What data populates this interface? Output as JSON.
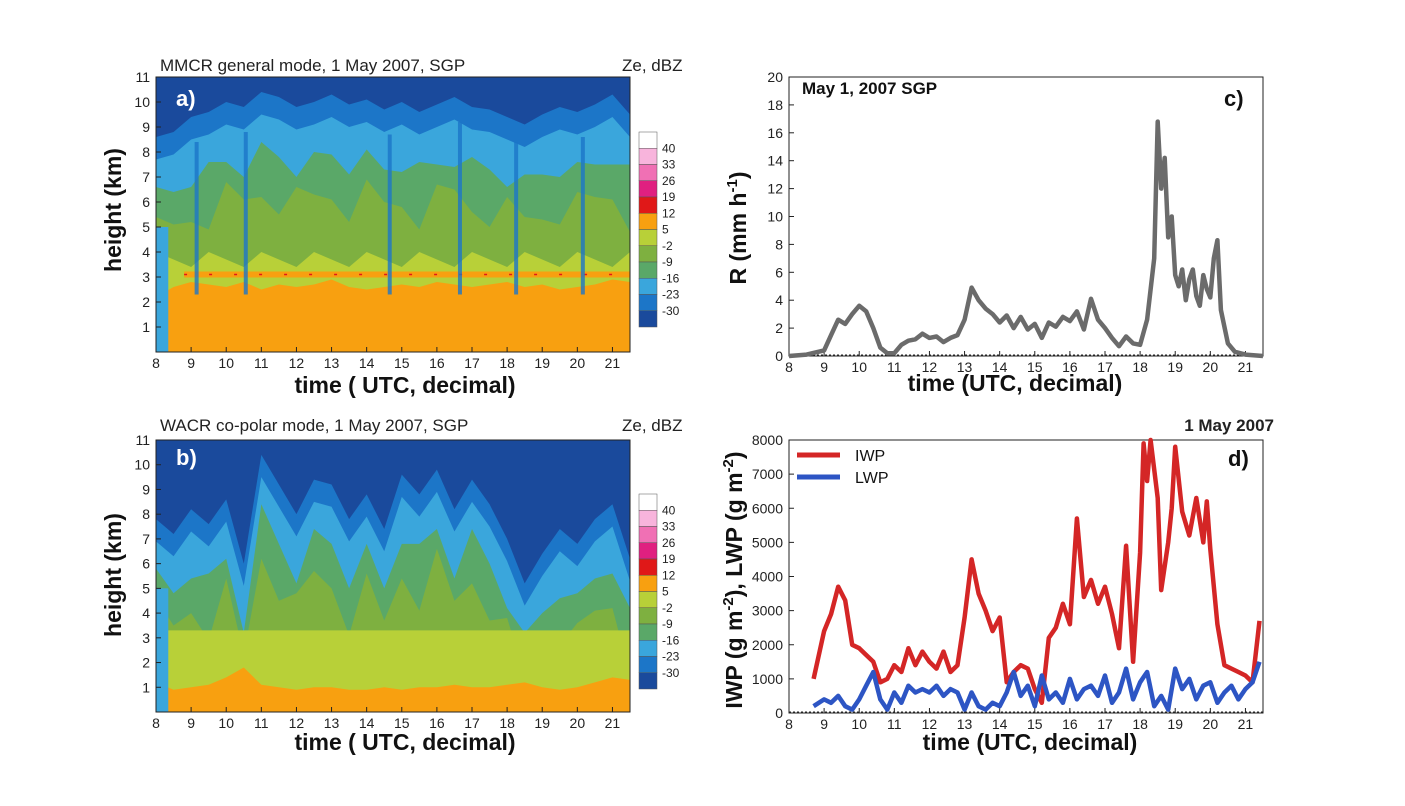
{
  "chart_data": [
    {
      "id": "a",
      "type": "heatmap",
      "panel_label": "a)",
      "title": "MMCR general mode, 1 May 2007, SGP",
      "unit_label": "Ze, dBZ",
      "xlabel": "time ( UTC, decimal)",
      "ylabel": "height (km)",
      "xlim": [
        8,
        21.5
      ],
      "ylim": [
        0,
        11
      ],
      "x_ticks": [
        "8",
        "9",
        "10",
        "11",
        "12",
        "13",
        "14",
        "15",
        "16",
        "17",
        "18",
        "19",
        "20",
        "21"
      ],
      "y_ticks": [
        "1",
        "2",
        "3",
        "4",
        "5",
        "6",
        "7",
        "8",
        "9",
        "10",
        "11"
      ],
      "colorbar_levels": [
        "40",
        "33",
        "26",
        "19",
        "12",
        "5",
        "-2",
        "-9",
        "-16",
        "-23",
        "-30"
      ],
      "colorbar_colors": [
        "#ffffff",
        "#f8b4dc",
        "#f070b4",
        "#e02080",
        "#e01818",
        "#f8a010",
        "#b8d038",
        "#7eb040",
        "#5aa868",
        "#3aa6dc",
        "#1c76c8",
        "#1a4a9c"
      ],
      "columns_time": [
        8,
        8.5,
        9,
        9.5,
        10,
        10.5,
        11,
        11.5,
        12,
        12.5,
        13,
        13.5,
        14,
        14.5,
        15,
        15.5,
        16,
        16.5,
        17,
        17.5,
        18,
        18.5,
        19,
        19.5,
        20,
        20.5,
        21,
        21.5
      ],
      "cloud_top_km": [
        8.6,
        8.8,
        9.4,
        9.6,
        10.0,
        9.8,
        10.4,
        10.2,
        9.8,
        10.0,
        10.3,
        9.9,
        10.1,
        9.7,
        10.0,
        9.6,
        9.9,
        10.2,
        9.8,
        9.7,
        9.4,
        9.1,
        9.5,
        9.8,
        9.6,
        9.9,
        10.3,
        9.5
      ],
      "melting_layer_km": 3.1,
      "rain_top_km": [
        2.2,
        2.6,
        2.8,
        2.7,
        2.6,
        2.8,
        2.5,
        2.7,
        2.6,
        2.7,
        2.9,
        2.6,
        2.5,
        2.6,
        2.7,
        2.6,
        2.8,
        2.7,
        2.6,
        2.7,
        2.8,
        2.6,
        2.7,
        2.5,
        2.6,
        2.7,
        2.9,
        2.8
      ]
    },
    {
      "id": "b",
      "type": "heatmap",
      "panel_label": "b)",
      "title": "WACR co-polar mode, 1 May 2007, SGP",
      "unit_label": "Ze, dBZ",
      "xlabel": "time ( UTC, decimal)",
      "ylabel": "height (km)",
      "xlim": [
        8,
        21.5
      ],
      "ylim": [
        0,
        11
      ],
      "x_ticks": [
        "8",
        "9",
        "10",
        "11",
        "12",
        "13",
        "14",
        "15",
        "16",
        "17",
        "18",
        "19",
        "20",
        "21"
      ],
      "y_ticks": [
        "1",
        "2",
        "3",
        "4",
        "5",
        "6",
        "7",
        "8",
        "9",
        "10",
        "11"
      ],
      "colorbar_levels": [
        "40",
        "33",
        "26",
        "19",
        "12",
        "5",
        "-2",
        "-9",
        "-16",
        "-23",
        "-30"
      ],
      "colorbar_colors": [
        "#ffffff",
        "#f8b4dc",
        "#f070b4",
        "#e02080",
        "#e01818",
        "#f8a010",
        "#b8d038",
        "#7eb040",
        "#5aa868",
        "#3aa6dc",
        "#1c76c8",
        "#1a4a9c"
      ],
      "columns_time": [
        8,
        8.5,
        9,
        9.5,
        10,
        10.5,
        11,
        11.5,
        12,
        12.5,
        13,
        13.5,
        14,
        14.5,
        15,
        15.5,
        16,
        16.5,
        17,
        17.5,
        18,
        18.5,
        19,
        19.5,
        20,
        20.5,
        21,
        21.5
      ],
      "cloud_top_km": [
        7.8,
        7.2,
        8.2,
        7.6,
        8.6,
        6.0,
        10.4,
        9.2,
        8.0,
        9.4,
        9.2,
        7.8,
        8.8,
        7.4,
        9.6,
        8.8,
        9.8,
        8.2,
        9.4,
        8.4,
        7.0,
        5.2,
        6.4,
        7.4,
        6.8,
        7.8,
        8.4,
        6.2
      ],
      "rain_top_km": [
        1.2,
        0.9,
        1.0,
        1.1,
        1.4,
        1.8,
        1.1,
        1.0,
        0.9,
        1.0,
        1.0,
        0.9,
        0.9,
        1.0,
        0.9,
        1.0,
        1.0,
        1.1,
        1.0,
        1.0,
        1.1,
        1.2,
        1.0,
        0.9,
        1.0,
        1.2,
        1.4,
        1.3
      ]
    },
    {
      "id": "c",
      "type": "line",
      "panel_label": "c)",
      "annotation": "May 1, 2007 SGP",
      "xlabel": "time (UTC, decimal)",
      "ylabel": "R (mm h-1)",
      "xlim": [
        8,
        21.5
      ],
      "ylim": [
        0,
        20
      ],
      "x_ticks": [
        "8",
        "9",
        "10",
        "11",
        "12",
        "13",
        "14",
        "15",
        "16",
        "17",
        "18",
        "19",
        "20",
        "21"
      ],
      "y_ticks": [
        "0",
        "2",
        "4",
        "6",
        "8",
        "10",
        "12",
        "14",
        "16",
        "18",
        "20"
      ],
      "color": "#6b6b6b",
      "x": [
        8,
        8.5,
        9,
        9.2,
        9.4,
        9.6,
        9.8,
        10,
        10.2,
        10.4,
        10.6,
        10.8,
        11,
        11.2,
        11.4,
        11.6,
        11.8,
        12,
        12.2,
        12.4,
        12.6,
        12.8,
        13,
        13.2,
        13.4,
        13.6,
        13.8,
        14,
        14.2,
        14.4,
        14.6,
        14.8,
        15,
        15.2,
        15.4,
        15.6,
        15.8,
        16,
        16.2,
        16.4,
        16.6,
        16.8,
        17,
        17.2,
        17.4,
        17.6,
        17.8,
        18,
        18.2,
        18.4,
        18.5,
        18.6,
        18.7,
        18.8,
        18.9,
        19,
        19.1,
        19.2,
        19.3,
        19.4,
        19.5,
        19.6,
        19.7,
        19.8,
        19.9,
        20,
        20.1,
        20.2,
        20.3,
        20.5,
        20.7,
        21,
        21.5
      ],
      "values": [
        0,
        0.1,
        0.4,
        1.5,
        2.6,
        2.3,
        3.0,
        3.6,
        3.2,
        2.0,
        0.6,
        0.2,
        0.2,
        0.8,
        1.1,
        1.2,
        1.6,
        1.3,
        1.4,
        1.0,
        1.3,
        1.5,
        2.6,
        4.9,
        4.0,
        3.4,
        3.0,
        2.4,
        2.9,
        2.0,
        2.8,
        1.9,
        2.3,
        1.3,
        2.4,
        2.1,
        2.8,
        2.5,
        3.2,
        1.9,
        4.1,
        2.6,
        2.0,
        1.3,
        0.7,
        1.4,
        0.9,
        0.8,
        2.6,
        7.0,
        16.8,
        12.0,
        14.2,
        8.5,
        10.0,
        5.8,
        5.0,
        6.2,
        4.0,
        5.5,
        6.2,
        4.3,
        3.6,
        5.8,
        4.8,
        4.2,
        7.0,
        8.3,
        3.3,
        0.9,
        0.3,
        0.1,
        0
      ]
    },
    {
      "id": "d",
      "type": "line",
      "panel_label": "d)",
      "annotation": "1 May 2007",
      "xlabel": "time (UTC, decimal)",
      "ylabel": "IWP (g m-2), LWP (g m-2)",
      "xlim": [
        8,
        21.5
      ],
      "ylim": [
        0,
        8000
      ],
      "x_ticks": [
        "8",
        "9",
        "10",
        "11",
        "12",
        "13",
        "14",
        "15",
        "16",
        "17",
        "18",
        "19",
        "20",
        "21"
      ],
      "y_ticks": [
        "0",
        "1000",
        "2000",
        "3000",
        "4000",
        "5000",
        "6000",
        "7000",
        "8000"
      ],
      "legend_position": "top-left",
      "series": [
        {
          "name": "IWP",
          "color": "#d42626",
          "x": [
            8.7,
            9.0,
            9.2,
            9.4,
            9.6,
            9.8,
            10.0,
            10.2,
            10.4,
            10.6,
            10.8,
            11.0,
            11.2,
            11.4,
            11.6,
            11.8,
            12.0,
            12.2,
            12.4,
            12.6,
            12.8,
            13.0,
            13.2,
            13.4,
            13.6,
            13.8,
            14.0,
            14.2,
            14.4,
            14.6,
            14.8,
            15.0,
            15.2,
            15.4,
            15.6,
            15.8,
            16.0,
            16.2,
            16.4,
            16.6,
            16.8,
            17.0,
            17.2,
            17.4,
            17.6,
            17.8,
            18.0,
            18.1,
            18.2,
            18.3,
            18.5,
            18.6,
            18.8,
            18.9,
            19.0,
            19.2,
            19.4,
            19.6,
            19.8,
            19.9,
            20.0,
            20.2,
            20.4,
            20.6,
            20.8,
            21.0,
            21.2,
            21.4
          ],
          "values": [
            1000,
            2400,
            2900,
            3700,
            3300,
            2000,
            1900,
            1700,
            1500,
            900,
            1000,
            1400,
            1200,
            1900,
            1400,
            1800,
            1500,
            1300,
            1800,
            1200,
            1400,
            2800,
            4500,
            3500,
            3000,
            2400,
            2800,
            900,
            1200,
            1400,
            1300,
            700,
            300,
            2200,
            2500,
            3200,
            2600,
            5700,
            3400,
            3900,
            3200,
            3700,
            2900,
            1900,
            4900,
            1500,
            4700,
            7900,
            6800,
            8000,
            6300,
            3600,
            5000,
            6000,
            7800,
            5900,
            5200,
            6300,
            5000,
            6200,
            4800,
            2600,
            1400,
            1300,
            1200,
            1100,
            900,
            2700
          ]
        },
        {
          "name": "LWP",
          "color": "#2d55c4",
          "x": [
            8.7,
            9.0,
            9.2,
            9.4,
            9.6,
            9.8,
            10.0,
            10.2,
            10.4,
            10.6,
            10.8,
            11.0,
            11.2,
            11.4,
            11.6,
            11.8,
            12.0,
            12.2,
            12.4,
            12.6,
            12.8,
            13.0,
            13.2,
            13.4,
            13.6,
            13.8,
            14.0,
            14.2,
            14.4,
            14.6,
            14.8,
            15.0,
            15.2,
            15.4,
            15.6,
            15.8,
            16.0,
            16.2,
            16.4,
            16.6,
            16.8,
            17.0,
            17.2,
            17.4,
            17.6,
            17.8,
            18.0,
            18.2,
            18.4,
            18.6,
            18.8,
            19.0,
            19.2,
            19.4,
            19.6,
            19.8,
            20.0,
            20.2,
            20.4,
            20.6,
            20.8,
            21.0,
            21.2,
            21.4
          ],
          "values": [
            200,
            400,
            300,
            500,
            200,
            100,
            400,
            800,
            1200,
            400,
            100,
            600,
            300,
            800,
            600,
            700,
            600,
            800,
            500,
            700,
            600,
            100,
            600,
            200,
            100,
            300,
            200,
            600,
            1200,
            500,
            800,
            200,
            1100,
            400,
            600,
            300,
            1000,
            400,
            700,
            800,
            500,
            1100,
            300,
            600,
            1300,
            400,
            900,
            1200,
            200,
            500,
            100,
            1300,
            700,
            1000,
            400,
            800,
            900,
            300,
            600,
            800,
            400,
            700,
            900,
            1500
          ]
        }
      ]
    }
  ]
}
